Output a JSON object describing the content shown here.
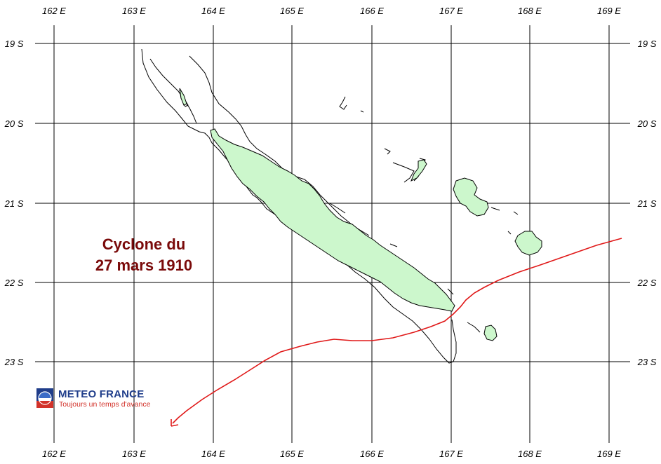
{
  "title": {
    "line1": "Cyclone du",
    "line2": "27 mars 1910"
  },
  "longitude_labels": [
    "162 E",
    "163 E",
    "164 E",
    "165 E",
    "166 E",
    "167 E",
    "168 E",
    "169 E"
  ],
  "latitude_labels": [
    "19 S",
    "20 S",
    "21 S",
    "22 S",
    "23 S"
  ],
  "logo": {
    "name": "METEO FRANCE",
    "slogan": "Toujours un temps d'avance"
  },
  "colors": {
    "land": "#ccf7cc",
    "track": "#e01818",
    "title": "#7a0a0a",
    "logo_blue": "#1f3d8a",
    "logo_red": "#d2322a"
  },
  "track_direction": "south-west"
}
